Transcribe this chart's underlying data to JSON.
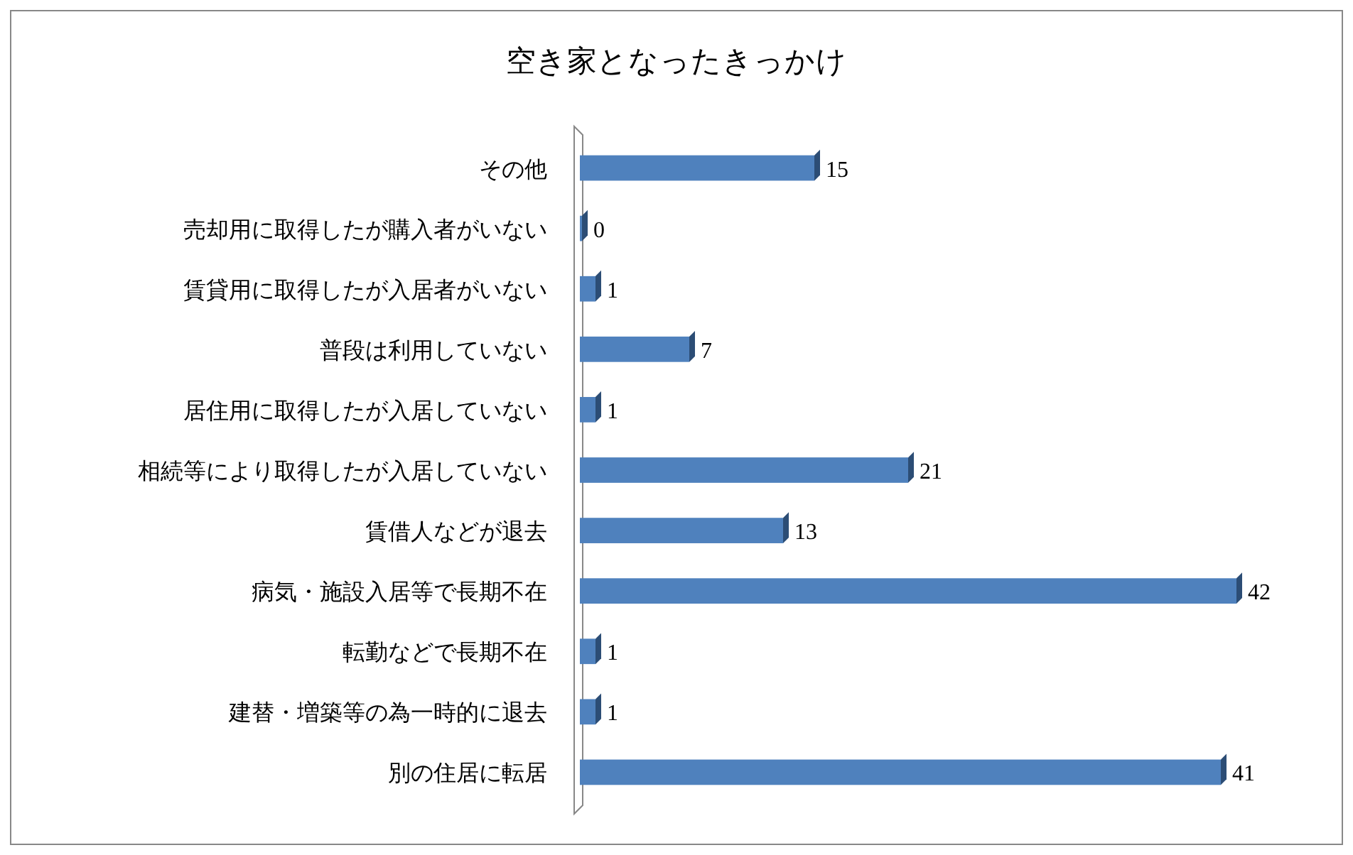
{
  "chart_data": {
    "type": "bar",
    "orientation": "horizontal",
    "title": "空き家となったきっかけ",
    "categories": [
      "その他",
      "売却用に取得したが購入者がいない",
      "賃貸用に取得したが入居者がいない",
      "普段は利用していない",
      "居住用に取得したが入居していない",
      "相続等により取得したが入居していない",
      "賃借人などが退去",
      "病気・施設入居等で長期不在",
      "転勤などで長期不在",
      "建替・増築等の為一時的に退去",
      "別の住居に転居"
    ],
    "values": [
      15,
      0,
      1,
      7,
      1,
      21,
      13,
      42,
      1,
      1,
      41
    ],
    "color": "#4f81bd",
    "data_labels": true
  }
}
